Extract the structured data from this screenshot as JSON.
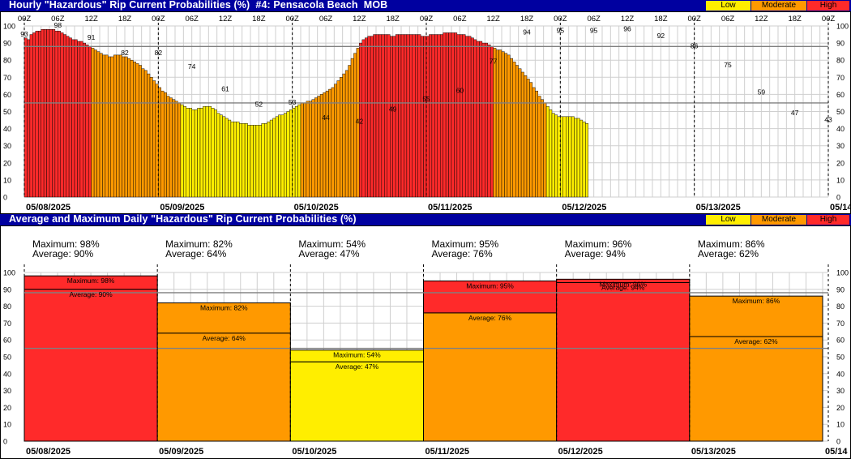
{
  "colors": {
    "low": "#ffee00",
    "moderate": "#ff9900",
    "high": "#ff2a2a",
    "title_bg": "#0000a0",
    "grid": "#cfcfcf",
    "threshold": "#808080"
  },
  "legend": {
    "low": "Low",
    "moderate": "Moderate",
    "high": "High"
  },
  "top_panel": {
    "title": "Hourly \"Hazardous\" Rip Current Probabilities (%)  #4: Pensacola Beach  MOB"
  },
  "bottom_panel": {
    "title": "Average and Maximum Daily \"Hazardous\" Rip Current Probabilities (%)"
  },
  "chart_data": [
    {
      "type": "bar",
      "title": "Hourly \"Hazardous\" Rip Current Probabilities (%)  #4: Pensacola Beach  MOB",
      "ylim": [
        0,
        100
      ],
      "yticks": [
        0,
        10,
        20,
        30,
        40,
        50,
        60,
        70,
        80,
        90,
        100
      ],
      "category_thresholds": {
        "moderate": 55,
        "high": 88
      },
      "x_tick_labels": [
        "00Z",
        "06Z",
        "12Z",
        "18Z",
        "00Z",
        "06Z",
        "12Z",
        "18Z",
        "00Z",
        "06Z",
        "12Z",
        "18Z",
        "00Z",
        "06Z",
        "12Z",
        "18Z",
        "00Z",
        "06Z",
        "12Z",
        "18Z",
        "00Z",
        "06Z",
        "12Z",
        "18Z",
        "00Z"
      ],
      "date_labels": [
        "05/08/2025",
        "05/09/2025",
        "05/10/2025",
        "05/11/2025",
        "05/12/2025",
        "05/13/2025",
        "05/14"
      ],
      "annotations": [
        {
          "hour": 0,
          "value": 93
        },
        {
          "hour": 12,
          "value": 98
        },
        {
          "hour": 24,
          "value": 91
        },
        {
          "hour": 36,
          "value": 82
        },
        {
          "hour": 48,
          "value": 82
        },
        {
          "hour": 60,
          "value": 74
        },
        {
          "hour": 72,
          "value": 61
        },
        {
          "hour": 84,
          "value": 52
        },
        {
          "hour": 96,
          "value": 53
        },
        {
          "hour": 108,
          "value": 44
        },
        {
          "hour": 120,
          "value": 42
        },
        {
          "hour": 132,
          "value": 49
        },
        {
          "hour": 144,
          "value": 55
        },
        {
          "hour": 156,
          "value": 60
        },
        {
          "hour": 168,
          "value": 77
        },
        {
          "hour": 180,
          "value": 94
        },
        {
          "hour": 192,
          "value": 95
        },
        {
          "hour": 204,
          "value": 95
        },
        {
          "hour": 216,
          "value": 96
        },
        {
          "hour": 228,
          "value": 92
        },
        {
          "hour": 240,
          "value": 86
        },
        {
          "hour": 252,
          "value": 75
        },
        {
          "hour": 264,
          "value": 59
        },
        {
          "hour": 276,
          "value": 47
        },
        {
          "hour": 288,
          "value": 43
        }
      ],
      "values": [
        93,
        92,
        95,
        96,
        97,
        97,
        98,
        98,
        98,
        98,
        98,
        97,
        97,
        96,
        95,
        94,
        93,
        92,
        92,
        91,
        91,
        90,
        89,
        88,
        87,
        86,
        85,
        84,
        83,
        83,
        82,
        82,
        83,
        83,
        83,
        82,
        82,
        81,
        80,
        79,
        78,
        77,
        75,
        74,
        72,
        70,
        68,
        66,
        64,
        62,
        61,
        59,
        58,
        57,
        56,
        55,
        54,
        53,
        52,
        52,
        51,
        51,
        52,
        52,
        53,
        53,
        53,
        52,
        51,
        49,
        48,
        47,
        46,
        45,
        44,
        44,
        44,
        43,
        43,
        43,
        42,
        42,
        42,
        42,
        42,
        43,
        43,
        44,
        45,
        46,
        47,
        48,
        48,
        49,
        50,
        51,
        52,
        53,
        54,
        55,
        55,
        56,
        56,
        57,
        58,
        59,
        60,
        61,
        62,
        63,
        64,
        66,
        68,
        70,
        72,
        74,
        77,
        81,
        84,
        87,
        90,
        92,
        93,
        94,
        94,
        95,
        95,
        95,
        95,
        95,
        95,
        94,
        94,
        95,
        95,
        95,
        95,
        95,
        95,
        95,
        95,
        95,
        94,
        94,
        94,
        95,
        95,
        95,
        95,
        95,
        96,
        96,
        96,
        96,
        96,
        95,
        95,
        95,
        94,
        94,
        93,
        92,
        91,
        91,
        90,
        90,
        89,
        88,
        87,
        86,
        86,
        85,
        84,
        83,
        81,
        79,
        77,
        75,
        73,
        71,
        69,
        67,
        64,
        62,
        59,
        57,
        55,
        53,
        51,
        49,
        48,
        47,
        47,
        47,
        47,
        47,
        47,
        46,
        46,
        45,
        44,
        43
      ]
    },
    {
      "type": "bar",
      "title": "Average and Maximum Daily \"Hazardous\" Rip Current Probabilities (%)",
      "ylim": [
        0,
        100
      ],
      "yticks": [
        0,
        10,
        20,
        30,
        40,
        50,
        60,
        70,
        80,
        90,
        100
      ],
      "categories": [
        "05/08/2025",
        "05/09/2025",
        "05/10/2025",
        "05/11/2025",
        "05/12/2025",
        "05/13/2025"
      ],
      "end_label": "05/14",
      "series": [
        {
          "name": "Maximum",
          "values": [
            98,
            82,
            54,
            95,
            96,
            86
          ]
        },
        {
          "name": "Average",
          "values": [
            90,
            64,
            47,
            76,
            94,
            62
          ]
        }
      ],
      "header_lines": [
        {
          "max": "Maximum: 98%",
          "avg": "Average: 90%"
        },
        {
          "max": "Maximum: 82%",
          "avg": "Average: 64%"
        },
        {
          "max": "Maximum: 54%",
          "avg": "Average: 47%"
        },
        {
          "max": "Maximum: 95%",
          "avg": "Average: 76%"
        },
        {
          "max": "Maximum: 96%",
          "avg": "Average: 94%"
        },
        {
          "max": "Maximum: 86%",
          "avg": "Average: 62%"
        }
      ],
      "bar_labels": [
        {
          "max": "Maximum: 98%",
          "avg": "Average: 90%"
        },
        {
          "max": "Maximum: 82%",
          "avg": "Average: 64%"
        },
        {
          "max": "Maximum: 54%",
          "avg": "Average: 47%"
        },
        {
          "max": "Maximum: 95%",
          "avg": "Average: 76%"
        },
        {
          "max": "Maximum: 96%",
          "avg": "Average: 94%"
        },
        {
          "max": "Maximum: 86%",
          "avg": "Average: 62%"
        }
      ]
    }
  ]
}
